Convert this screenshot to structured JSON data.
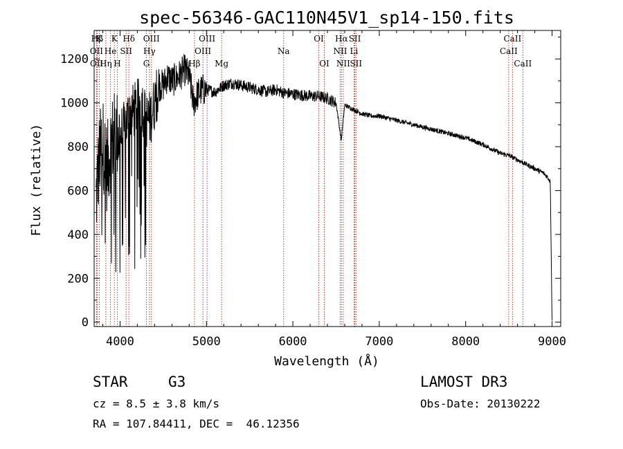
{
  "chart_data": {
    "type": "line",
    "title": "spec-56346-GAC110N45V1_sp14-150.fits",
    "xlabel": "Wavelength (Å)",
    "ylabel": "Flux (relative)",
    "xlim": [
      3700,
      9100
    ],
    "ylim": [
      -20,
      1330
    ],
    "xticks": [
      4000,
      5000,
      6000,
      7000,
      8000,
      9000
    ],
    "yticks": [
      0,
      200,
      400,
      600,
      800,
      1000,
      1200
    ],
    "spectrum_envelope": {
      "x": [
        3720,
        3760,
        3800,
        3850,
        3900,
        3950,
        4000,
        4050,
        4100,
        4150,
        4200,
        4250,
        4300,
        4350,
        4400,
        4450,
        4500,
        4550,
        4600,
        4650,
        4700,
        4750,
        4800,
        4850,
        4900,
        4950,
        5000,
        5100,
        5200,
        5300,
        5400,
        5500,
        5600,
        5700,
        5800,
        5900,
        6000,
        6100,
        6200,
        6300,
        6400,
        6500,
        6560,
        6600,
        6700,
        6800,
        6900,
        7000,
        7200,
        7400,
        7600,
        7800,
        8000,
        8200,
        8400,
        8500,
        8600,
        8700,
        8800,
        8900,
        8950,
        8980,
        9000
      ],
      "y": [
        550,
        750,
        820,
        700,
        820,
        860,
        850,
        880,
        950,
        960,
        980,
        1000,
        920,
        930,
        1000,
        1080,
        1080,
        1120,
        1100,
        1110,
        1130,
        1150,
        1120,
        1000,
        1040,
        1060,
        1060,
        1050,
        1080,
        1090,
        1080,
        1070,
        1060,
        1050,
        1060,
        1045,
        1040,
        1035,
        1030,
        1030,
        1020,
        1000,
        830,
        990,
        970,
        950,
        940,
        940,
        920,
        900,
        880,
        860,
        840,
        810,
        770,
        760,
        740,
        720,
        700,
        680,
        660,
        640,
        0
      ]
    },
    "line_markers": [
      {
        "label": "Hβ",
        "wavelength": 3735,
        "row": 1
      },
      {
        "label": "K",
        "wavelength": 3760,
        "row": 1
      },
      {
        "label": "K",
        "wavelength": 3934,
        "row": 1
      },
      {
        "label": "Hδ",
        "wavelength": 4102,
        "row": 1
      },
      {
        "label": "OIII",
        "wavelength": 4363,
        "row": 1
      },
      {
        "label": "OIII",
        "wavelength": 5007,
        "row": 1
      },
      {
        "label": "OI",
        "wavelength": 6300,
        "row": 1
      },
      {
        "label": "Hα",
        "wavelength": 6563,
        "row": 1
      },
      {
        "label": "SII",
        "wavelength": 6717,
        "row": 1
      },
      {
        "label": "CaII",
        "wavelength": 8542,
        "row": 1
      },
      {
        "label": "OII",
        "wavelength": 3727,
        "row": 2
      },
      {
        "label": "He",
        "wavelength": 3889,
        "row": 2
      },
      {
        "label": "SII",
        "wavelength": 4070,
        "row": 2
      },
      {
        "label": "Hγ",
        "wavelength": 4340,
        "row": 2
      },
      {
        "label": "OIII",
        "wavelength": 4959,
        "row": 2
      },
      {
        "label": "Na",
        "wavelength": 5893,
        "row": 2
      },
      {
        "label": "NII",
        "wavelength": 6548,
        "row": 2
      },
      {
        "label": "Li",
        "wavelength": 6708,
        "row": 2
      },
      {
        "label": "CaII",
        "wavelength": 8498,
        "row": 2
      },
      {
        "label": "OII",
        "wavelength": 3729,
        "row": 3
      },
      {
        "label": "Hη",
        "wavelength": 3835,
        "row": 3
      },
      {
        "label": "H",
        "wavelength": 3968,
        "row": 3
      },
      {
        "label": "G",
        "wavelength": 4305,
        "row": 3
      },
      {
        "label": "Hβ",
        "wavelength": 4861,
        "row": 3
      },
      {
        "label": "Mg",
        "wavelength": 5175,
        "row": 3
      },
      {
        "label": "OI",
        "wavelength": 6364,
        "row": 3
      },
      {
        "label": "NII",
        "wavelength": 6583,
        "row": 3
      },
      {
        "label": "SII",
        "wavelength": 6731,
        "row": 3
      },
      {
        "label": "CaII",
        "wavelength": 8662,
        "row": 3
      }
    ]
  },
  "info": {
    "class": "STAR",
    "subclass": "G3",
    "survey": "LAMOST DR3",
    "cz": "cz = 8.5 ± 3.8 km/s",
    "obs_date": "Obs-Date: 20130222",
    "radec": "RA = 107.84411, DEC =  46.12356"
  },
  "colors": {
    "line": "#000000",
    "marker": "#c0392b",
    "axis": "#000000"
  }
}
